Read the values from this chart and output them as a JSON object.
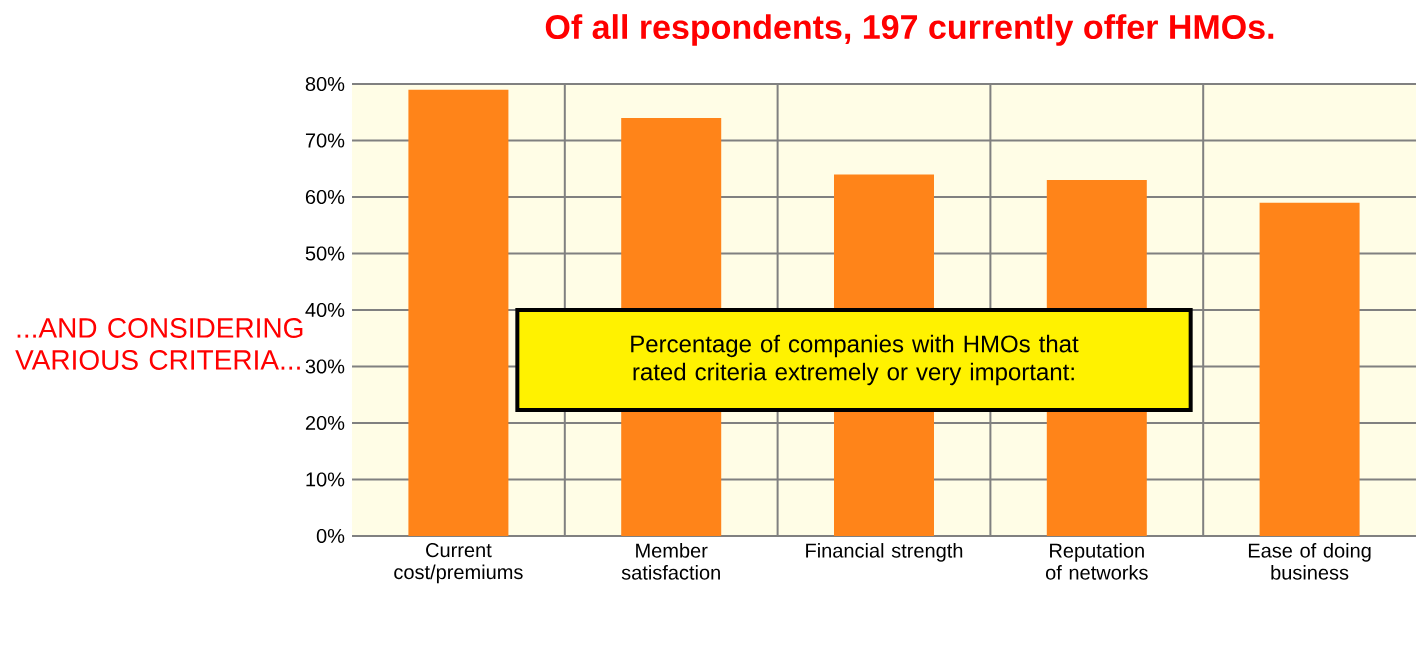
{
  "chart_data": {
    "type": "bar",
    "title": "Of all respondents, 197 currently offer HMOs.",
    "categories": [
      "Current cost/premiums",
      "Member satisfaction",
      "Financial strength",
      "Reputation of networks",
      "Ease of doing business"
    ],
    "values": [
      79,
      74,
      64,
      63,
      59
    ],
    "color": "#ff8419",
    "ylim": [
      0,
      80
    ],
    "yticks": [
      {
        "value": 0,
        "label": "0%"
      },
      {
        "value": 10,
        "label": "10%"
      },
      {
        "value": 20,
        "label": "20%"
      },
      {
        "value": 30,
        "label": "30%"
      },
      {
        "value": 40,
        "label": "40%"
      },
      {
        "value": 50,
        "label": "50%"
      },
      {
        "value": 60,
        "label": "60%"
      },
      {
        "value": 70,
        "label": "70%"
      },
      {
        "value": 80,
        "label": "80%"
      }
    ],
    "grid": true,
    "annotations": [
      "...AND CONSIDERING VARIOUS CRITERIA...",
      "Percentage of companies with HMOs that rated criteria extremely or very important:"
    ]
  }
}
